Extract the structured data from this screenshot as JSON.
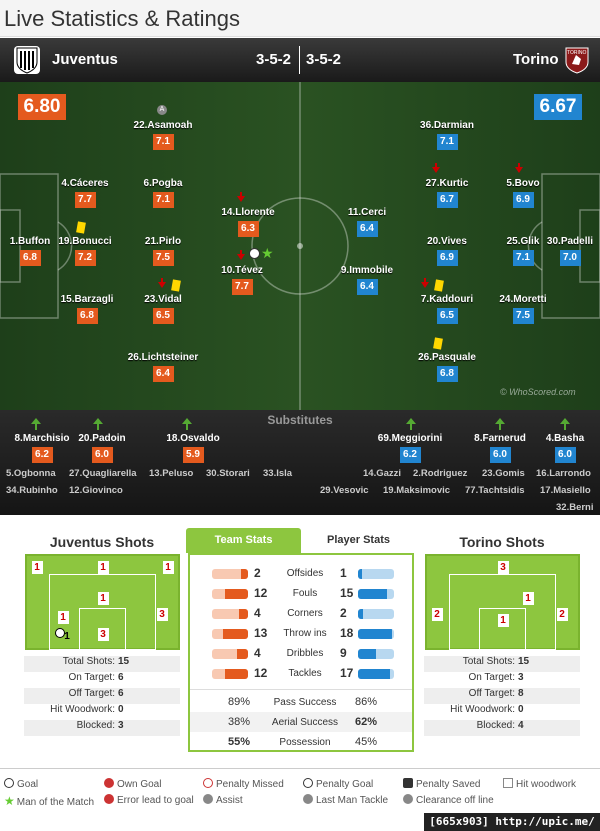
{
  "page_title": "Live Statistics & Ratings",
  "home": {
    "name": "Juventus",
    "formation": "3-5-2",
    "rating": "6.80"
  },
  "away": {
    "name": "Torino",
    "formation": "3-5-2",
    "rating": "6.67"
  },
  "away_crest_text": "TORINO",
  "colors": {
    "home": "#e45a1e",
    "away": "#2185d0",
    "pitch": "#2a5222"
  },
  "home_players": [
    {
      "name": "22.Asamoah",
      "rating": "7.1"
    },
    {
      "name": "4.Cáceres",
      "rating": "7.7"
    },
    {
      "name": "6.Pogba",
      "rating": "7.1"
    },
    {
      "name": "14.Llorente",
      "rating": "6.3"
    },
    {
      "name": "1.Buffon",
      "rating": "6.8"
    },
    {
      "name": "19.Bonucci",
      "rating": "7.2"
    },
    {
      "name": "21.Pirlo",
      "rating": "7.5"
    },
    {
      "name": "10.Tévez",
      "rating": "7.7"
    },
    {
      "name": "15.Barzagli",
      "rating": "6.8"
    },
    {
      "name": "23.Vidal",
      "rating": "6.5"
    },
    {
      "name": "26.Lichtsteiner",
      "rating": "6.4"
    }
  ],
  "away_players": [
    {
      "name": "36.Darmian",
      "rating": "7.1"
    },
    {
      "name": "27.Kurtic",
      "rating": "6.7"
    },
    {
      "name": "5.Bovo",
      "rating": "6.9"
    },
    {
      "name": "11.Cerci",
      "rating": "6.4"
    },
    {
      "name": "20.Vives",
      "rating": "6.9"
    },
    {
      "name": "25.Glik",
      "rating": "7.1"
    },
    {
      "name": "30.Padelli",
      "rating": "7.0"
    },
    {
      "name": "9.Immobile",
      "rating": "6.4"
    },
    {
      "name": "7.Kaddouri",
      "rating": "6.5"
    },
    {
      "name": "24.Moretti",
      "rating": "7.5"
    },
    {
      "name": "26.Pasquale",
      "rating": "6.8"
    }
  ],
  "watermark": "© WhoScored.com",
  "subs_title": "Substitutes",
  "home_subs": [
    {
      "name": "8.Marchisio",
      "rating": "6.2"
    },
    {
      "name": "20.Padoin",
      "rating": "6.0"
    },
    {
      "name": "18.Osvaldo",
      "rating": "5.9"
    }
  ],
  "away_subs": [
    {
      "name": "69.Meggiorini",
      "rating": "6.2"
    },
    {
      "name": "8.Farnerud",
      "rating": "6.0"
    },
    {
      "name": "4.Basha",
      "rating": "6.0"
    }
  ],
  "home_unused": [
    "5.Ogbonna",
    "27.Quagliarella",
    "13.Peluso",
    "30.Storari",
    "33.Isla",
    "34.Rubinho",
    "12.Giovinco"
  ],
  "away_unused": [
    "14.Gazzi",
    "2.Rodriguez",
    "23.Gomis",
    "16.Larrondo",
    "29.Vesovic",
    "19.Maksimovic",
    "77.Tachtsidis",
    "17.Masiello",
    "32.Berni"
  ],
  "home_shots": {
    "title": "Juventus Shots",
    "zones": [
      "1",
      "1",
      "1",
      "1",
      "1",
      "3",
      "1",
      "3",
      "1"
    ],
    "stats": [
      {
        "label": "Total Shots:",
        "value": "15"
      },
      {
        "label": "On Target:",
        "value": "6"
      },
      {
        "label": "Off Target:",
        "value": "6"
      },
      {
        "label": "Hit Woodwork:",
        "value": "0"
      },
      {
        "label": "Blocked:",
        "value": "3"
      }
    ]
  },
  "away_shots": {
    "title": "Torino Shots",
    "zones": [
      "3",
      "1",
      "2",
      "1",
      "2"
    ],
    "stats": [
      {
        "label": "Total Shots:",
        "value": "15"
      },
      {
        "label": "On Target:",
        "value": "3"
      },
      {
        "label": "Off Target:",
        "value": "8"
      },
      {
        "label": "Hit Woodwork:",
        "value": "0"
      },
      {
        "label": "Blocked:",
        "value": "4"
      }
    ]
  },
  "tabs": {
    "team": "Team Stats",
    "player": "Player Stats"
  },
  "team_stats": [
    {
      "label": "Offsides",
      "home": "2",
      "away": "1"
    },
    {
      "label": "Fouls",
      "home": "12",
      "away": "15"
    },
    {
      "label": "Corners",
      "home": "4",
      "away": "2"
    },
    {
      "label": "Throw ins",
      "home": "13",
      "away": "18"
    },
    {
      "label": "Dribbles",
      "home": "4",
      "away": "9"
    },
    {
      "label": "Tackles",
      "home": "12",
      "away": "17"
    }
  ],
  "pct_stats": [
    {
      "label": "Pass Success",
      "home": "89%",
      "away": "86%"
    },
    {
      "label": "Aerial Success",
      "home": "38%",
      "away": "62%"
    },
    {
      "label": "Possession",
      "home": "55%",
      "away": "45%"
    }
  ],
  "legend": [
    "Goal",
    "Own Goal",
    "Penalty Missed",
    "Penalty Goal",
    "Penalty Saved",
    "Hit woodwork",
    "Man of the Match",
    "Error lead to goal",
    "Assist",
    "Last Man Tackle",
    "Clearance off line"
  ],
  "footer": "[665x903] http://upic.me/"
}
